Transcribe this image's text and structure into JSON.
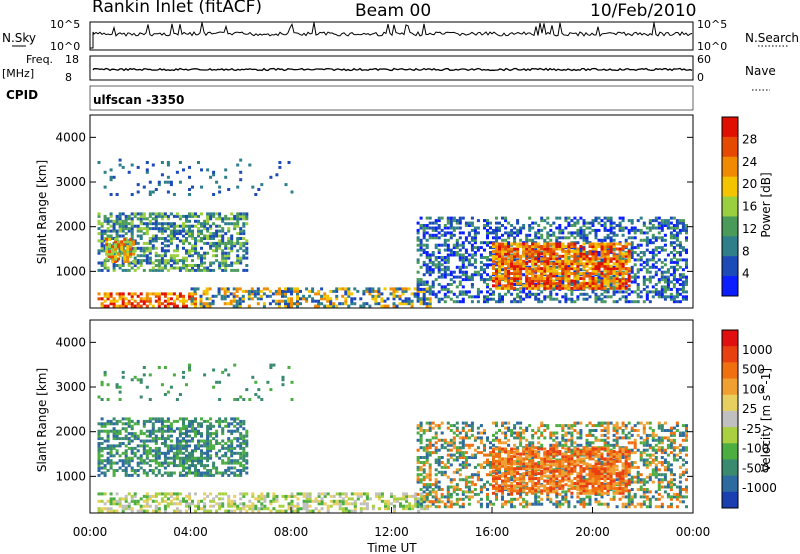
{
  "header": {
    "station": "Rankin Inlet (fitACF)",
    "beam": "Beam 00",
    "date": "10/Feb/2010"
  },
  "strip": {
    "nsky_label": "N.Sky",
    "nsearch_label": "N.Search",
    "nsky_ticks": [
      "10^5",
      "10^0"
    ],
    "nsearch_ticks": [
      "10^5",
      "10^0"
    ],
    "freq_label_1": "Freq.",
    "freq_label_2": "[MHz]",
    "freq_ticks": [
      "18",
      "8"
    ],
    "nave_label": "Nave",
    "nave_ticks": [
      "60",
      "0"
    ],
    "cpid_label": "CPID",
    "cpid_value": "ulfscan -3350"
  },
  "chart_data": [
    {
      "type": "heatmap",
      "panel": "power",
      "ylabel": "Slant Range [km]",
      "xlabel": "",
      "yticks": [
        "1000",
        "2000",
        "3000",
        "4000"
      ],
      "ylim": [
        180,
        4500
      ],
      "xlim_hours": [
        0,
        24
      ],
      "colorbar": {
        "label": "Power [dB]",
        "ticks": [
          "4",
          "8",
          "12",
          "16",
          "20",
          "24",
          "28"
        ],
        "colors": [
          "#0a1eff",
          "#1c4bb8",
          "#2e7f8a",
          "#4a9a5a",
          "#9ad040",
          "#f5c400",
          "#f08a00",
          "#e54a00",
          "#e01000"
        ]
      }
    },
    {
      "type": "heatmap",
      "panel": "velocity",
      "ylabel": "Slant Range [km]",
      "xlabel": "Time UT",
      "yticks": [
        "1000",
        "2000",
        "3000",
        "4000"
      ],
      "ylim": [
        180,
        4500
      ],
      "xticks": [
        "00:00",
        "04:00",
        "08:00",
        "12:00",
        "16:00",
        "20:00",
        "00:00"
      ],
      "colorbar": {
        "label": "Velocity [m s^-1]",
        "ticks": [
          "1000",
          "500",
          "100",
          "25",
          "-25",
          "-100",
          "-500",
          "-1000"
        ],
        "colors": [
          "#1a3fb0",
          "#2c6aa0",
          "#3a8a70",
          "#4cae40",
          "#a8d040",
          "#c0c0c0",
          "#e8d060",
          "#f0a030",
          "#f07010",
          "#e84010",
          "#e01010"
        ]
      }
    }
  ]
}
